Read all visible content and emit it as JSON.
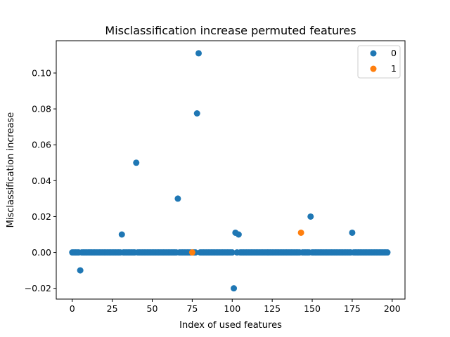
{
  "chart_data": {
    "type": "scatter",
    "title": "Misclassification increase permuted features",
    "xlabel": "Index of used features",
    "ylabel": "Misclassification increase",
    "xlim": [
      -10,
      208
    ],
    "ylim": [
      -0.026,
      0.118
    ],
    "xticks": [
      0,
      25,
      50,
      75,
      100,
      125,
      150,
      175,
      200
    ],
    "yticks": [
      -0.02,
      0.0,
      0.02,
      0.04,
      0.06,
      0.08,
      0.1
    ],
    "ytick_labels": [
      "−0.02",
      "0.00",
      "0.02",
      "0.04",
      "0.06",
      "0.08",
      "0.10"
    ],
    "grid": false,
    "legend_position": "top-right",
    "series": [
      {
        "name": "0",
        "color": "#1f77b4",
        "points": [
          [
            5,
            -0.01
          ],
          [
            31,
            0.01
          ],
          [
            40,
            0.05
          ],
          [
            66,
            0.03
          ],
          [
            78,
            0.0775
          ],
          [
            79,
            0.111
          ],
          [
            101,
            -0.02
          ],
          [
            102,
            0.011
          ],
          [
            104,
            0.01
          ],
          [
            149,
            0.02
          ],
          [
            175,
            0.011
          ]
        ],
        "zero_range": [
          0,
          197
        ],
        "zero_exclude": [
          5,
          31,
          40,
          66,
          75,
          78,
          79,
          101,
          102,
          104,
          143,
          149,
          175
        ]
      },
      {
        "name": "1",
        "color": "#ff7f0e",
        "points": [
          [
            75,
            0.0
          ],
          [
            143,
            0.011
          ]
        ]
      }
    ]
  }
}
